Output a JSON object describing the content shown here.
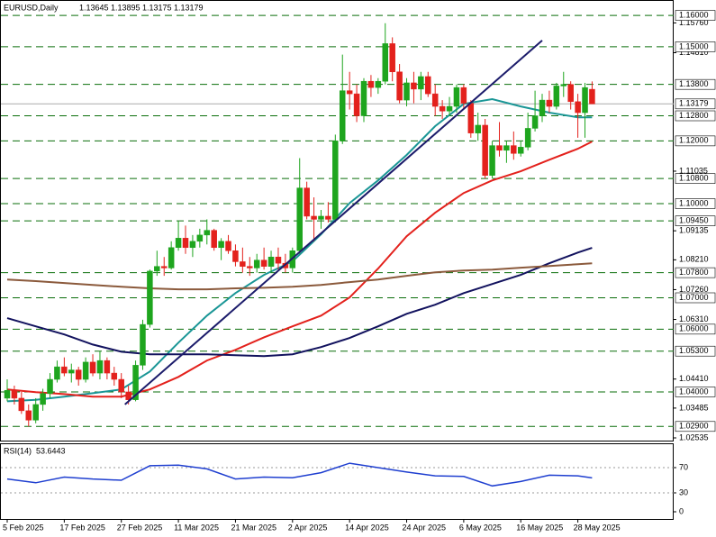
{
  "chart_data": {
    "type": "candlestick",
    "symbol": "EURUSD,Daily",
    "categories": [
      "5 Feb 2025",
      null,
      null,
      null,
      null,
      null,
      null,
      null,
      "17 Feb 2025",
      null,
      null,
      null,
      null,
      null,
      null,
      null,
      "27 Feb 2025",
      null,
      null,
      null,
      null,
      null,
      null,
      null,
      "11 Mar 2025",
      null,
      null,
      null,
      null,
      null,
      null,
      null,
      "21 Mar 2025",
      null,
      null,
      null,
      null,
      null,
      null,
      null,
      "2 Apr 2025",
      null,
      null,
      null,
      null,
      null,
      null,
      null,
      "14 Apr 2025",
      null,
      null,
      null,
      null,
      null,
      null,
      null,
      "24 Apr 2025",
      null,
      null,
      null,
      null,
      null,
      null,
      null,
      "6 May 2025",
      null,
      null,
      null,
      null,
      null,
      null,
      null,
      "16 May 2025",
      null,
      null,
      null,
      null,
      null,
      null,
      null,
      "28 May 2025",
      null,
      null
    ],
    "open": [
      1.038,
      1.0405,
      1.038,
      1.034,
      1.031,
      1.036,
      1.0395,
      1.044,
      1.048,
      1.046,
      1.047,
      1.044,
      1.0495,
      1.046,
      1.05,
      1.046,
      1.044,
      1.04,
      1.0375,
      1.0485,
      1.0615,
      1.0785,
      1.08,
      1.0795,
      1.086,
      1.089,
      1.086,
      1.088,
      1.09,
      1.0915,
      1.086,
      1.088,
      1.085,
      1.0815,
      1.08,
      1.0795,
      1.082,
      1.08,
      1.083,
      1.081,
      1.0795,
      1.085,
      1.105,
      1.096,
      1.095,
      1.096,
      1.095,
      1.12,
      1.136,
      1.135,
      1.128,
      1.139,
      1.137,
      1.139,
      1.151,
      1.142,
      1.133,
      1.1385,
      1.1365,
      1.1405,
      1.135,
      1.131,
      1.1295,
      1.131,
      1.137,
      1.132,
      1.1225,
      1.125,
      1.109,
      1.1185,
      1.117,
      1.1185,
      1.116,
      1.118,
      1.124,
      1.128,
      1.133,
      1.131,
      1.1375,
      1.138,
      1.1325,
      1.129,
      1.13645
    ],
    "high": [
      1.044,
      1.042,
      1.04,
      1.036,
      1.038,
      1.041,
      1.046,
      1.05,
      1.051,
      1.049,
      1.048,
      1.051,
      1.052,
      1.053,
      1.051,
      1.048,
      1.046,
      1.042,
      1.05,
      1.063,
      1.079,
      1.085,
      1.083,
      1.088,
      1.0945,
      1.093,
      1.09,
      1.092,
      1.095,
      1.092,
      1.089,
      1.09,
      1.087,
      1.086,
      1.083,
      1.084,
      1.086,
      1.085,
      1.086,
      1.084,
      1.086,
      1.1145,
      1.107,
      1.102,
      1.098,
      1.1005,
      1.122,
      1.1475,
      1.142,
      1.138,
      1.14,
      1.141,
      1.14,
      1.1575,
      1.153,
      1.1445,
      1.14,
      1.142,
      1.142,
      1.142,
      1.138,
      1.133,
      1.134,
      1.138,
      1.138,
      1.133,
      1.129,
      1.127,
      1.12,
      1.126,
      1.12,
      1.123,
      1.12,
      1.129,
      1.136,
      1.135,
      1.136,
      1.1385,
      1.142,
      1.139,
      1.135,
      1.1385,
      1.13895
    ],
    "low": [
      1.037,
      1.036,
      1.033,
      1.029,
      1.03,
      1.034,
      1.038,
      1.043,
      1.045,
      1.043,
      1.042,
      1.043,
      1.045,
      1.044,
      1.044,
      1.042,
      1.038,
      1.036,
      1.037,
      1.047,
      1.0605,
      1.077,
      1.077,
      1.079,
      1.085,
      1.084,
      1.083,
      1.086,
      1.087,
      1.085,
      1.082,
      1.084,
      1.08,
      1.078,
      1.077,
      1.078,
      1.079,
      1.078,
      1.079,
      1.078,
      1.078,
      1.084,
      1.095,
      1.088,
      1.092,
      1.094,
      1.094,
      1.119,
      1.13,
      1.126,
      1.126,
      1.134,
      1.135,
      1.138,
      1.139,
      1.132,
      1.131,
      1.132,
      1.133,
      1.134,
      1.128,
      1.127,
      1.128,
      1.129,
      1.13,
      1.121,
      1.12,
      1.108,
      1.108,
      1.115,
      1.113,
      1.114,
      1.115,
      1.117,
      1.123,
      1.126,
      1.129,
      1.13,
      1.134,
      1.13,
      1.121,
      1.121,
      1.13175
    ],
    "close": [
      1.0405,
      1.038,
      1.034,
      1.031,
      1.036,
      1.0395,
      1.044,
      1.048,
      1.046,
      1.047,
      1.044,
      1.0495,
      1.046,
      1.05,
      1.046,
      1.044,
      1.04,
      1.0375,
      1.0485,
      1.0615,
      1.0785,
      1.08,
      1.0795,
      1.086,
      1.089,
      1.086,
      1.088,
      1.09,
      1.0915,
      1.086,
      1.088,
      1.085,
      1.0815,
      1.08,
      1.0795,
      1.082,
      1.08,
      1.083,
      1.081,
      1.0795,
      1.085,
      1.105,
      1.096,
      1.095,
      1.096,
      1.095,
      1.12,
      1.136,
      1.135,
      1.128,
      1.139,
      1.137,
      1.139,
      1.151,
      1.142,
      1.133,
      1.1385,
      1.1365,
      1.1405,
      1.135,
      1.131,
      1.1295,
      1.131,
      1.137,
      1.132,
      1.1225,
      1.125,
      1.109,
      1.1185,
      1.117,
      1.1185,
      1.116,
      1.118,
      1.124,
      1.128,
      1.133,
      1.131,
      1.1375,
      1.138,
      1.1325,
      1.129,
      1.137,
      1.13179
    ],
    "up_color": "#1ea51e",
    "down_color": "#e3211c",
    "ylim": [
      1.0242,
      1.1649
    ],
    "yticks": [
      {
        "value": 1.1576,
        "label": "1.15760"
      },
      {
        "value": 1.1481,
        "label": "1.14810"
      },
      {
        "value": 1.11035,
        "label": "1.11035"
      },
      {
        "value": 1.09135,
        "label": "1.09135"
      },
      {
        "value": 1.0821,
        "label": "1.08210"
      },
      {
        "value": 1.0726,
        "label": "1.07260"
      },
      {
        "value": 1.0631,
        "label": "1.06310"
      },
      {
        "value": 1.0441,
        "label": "1.04410"
      },
      {
        "value": 1.03485,
        "label": "1.03485"
      },
      {
        "value": 1.02535,
        "label": "1.02535"
      }
    ],
    "levels": [
      {
        "value": 1.16,
        "label": "1.16000"
      },
      {
        "value": 1.15,
        "label": "1.15000"
      },
      {
        "value": 1.138,
        "label": "1.13800"
      },
      {
        "value": 1.128,
        "label": "1.12800"
      },
      {
        "value": 1.12,
        "label": "1.12000"
      },
      {
        "value": 1.108,
        "label": "1.10800"
      },
      {
        "value": 1.1,
        "label": "1.10000"
      },
      {
        "value": 1.0945,
        "label": "1.09450"
      },
      {
        "value": 1.078,
        "label": "1.07800"
      },
      {
        "value": 1.07,
        "label": "1.07000"
      },
      {
        "value": 1.06,
        "label": "1.06000"
      },
      {
        "value": 1.053,
        "label": "1.05300"
      },
      {
        "value": 1.04,
        "label": "1.04000"
      },
      {
        "value": 1.029,
        "label": "1.02900"
      }
    ],
    "level_color": "#0a6e0a",
    "moving_averages": [
      {
        "color": "#1a9696",
        "x": [
          0,
          4,
          8,
          12,
          16,
          20,
          24,
          28,
          32,
          36,
          40,
          44,
          48,
          52,
          56,
          60,
          64,
          68,
          72,
          76,
          80,
          82
        ],
        "values": [
          1.037,
          1.0375,
          1.0385,
          1.0396,
          1.0408,
          1.0465,
          1.0557,
          1.0643,
          1.0715,
          1.0773,
          1.0816,
          1.0902,
          1.1002,
          1.1074,
          1.1155,
          1.1247,
          1.1318,
          1.1333,
          1.131,
          1.129,
          1.1275,
          1.1275
        ]
      },
      {
        "color": "#e3211c",
        "x": [
          0,
          4,
          8,
          12,
          16,
          20,
          24,
          28,
          32,
          36,
          40,
          44,
          48,
          52,
          56,
          60,
          64,
          68,
          72,
          76,
          80,
          82
        ],
        "values": [
          1.0408,
          1.0399,
          1.0393,
          1.0385,
          1.0385,
          1.0408,
          1.0448,
          1.05,
          1.0534,
          1.0574,
          1.0609,
          1.0643,
          1.0701,
          1.0793,
          1.0896,
          1.0971,
          1.1034,
          1.1074,
          1.1103,
          1.114,
          1.1175,
          1.1198
        ]
      },
      {
        "color": "#12125e",
        "x": [
          0,
          4,
          8,
          12,
          16,
          20,
          24,
          28,
          32,
          36,
          40,
          44,
          48,
          52,
          56,
          60,
          64,
          68,
          72,
          76,
          80,
          82
        ],
        "values": [
          1.0635,
          1.0609,
          1.0583,
          1.0551,
          1.0528,
          1.052,
          1.052,
          1.052,
          1.0517,
          1.0514,
          1.052,
          1.0543,
          1.0572,
          1.0609,
          1.0649,
          1.0678,
          1.0715,
          1.0744,
          1.0773,
          1.081,
          1.0844,
          1.0859
        ]
      },
      {
        "color": "#8b5a3c",
        "x": [
          0,
          4,
          8,
          12,
          16,
          20,
          24,
          28,
          32,
          36,
          40,
          44,
          48,
          52,
          56,
          60,
          64,
          68,
          72,
          76,
          80,
          82
        ],
        "values": [
          1.0758,
          1.0753,
          1.0747,
          1.0741,
          1.0735,
          1.073,
          1.0727,
          1.0727,
          1.073,
          1.0732,
          1.0735,
          1.0741,
          1.075,
          1.0758,
          1.077,
          1.0781,
          1.0787,
          1.079,
          1.0796,
          1.0801,
          1.0807,
          1.081
        ]
      }
    ],
    "trend_line": {
      "color": "#1c1c6b",
      "x": [
        16.5,
        75
      ],
      "values": [
        1.036,
        1.152
      ]
    },
    "rsi": {
      "name": "RSI(14)",
      "color": "#1f3fd0",
      "ylim": [
        0,
        100
      ],
      "yticks": [
        70,
        30,
        0
      ],
      "levels": [
        70,
        30
      ],
      "x": [
        0,
        4,
        8,
        12,
        16,
        20,
        24,
        28,
        32,
        36,
        40,
        44,
        48,
        52,
        56,
        60,
        64,
        68,
        72,
        76,
        80,
        82
      ],
      "values": [
        52,
        46,
        55,
        52,
        50,
        73,
        74,
        68,
        52,
        55,
        54,
        62,
        77,
        70,
        63,
        57,
        56,
        41,
        48,
        58,
        57,
        53.6443
      ]
    }
  }
}
